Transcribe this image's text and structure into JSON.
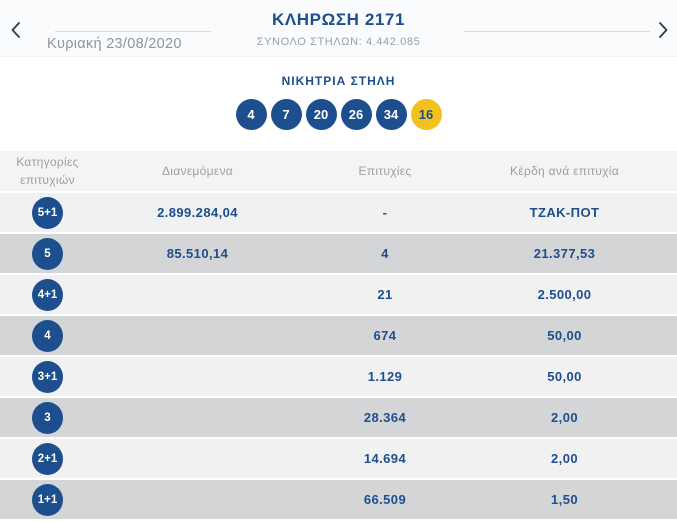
{
  "header": {
    "title": "ΚΛΗΡΩΣΗ 2171",
    "subtitle": "ΣΥΝΟΛΟ ΣΤΗΛΩΝ: 4.442.085",
    "date": "Κυριακή 23/08/2020"
  },
  "winning": {
    "label": "ΝΙΚΗΤΡΙΑ ΣΤΗΛΗ",
    "numbers": [
      "4",
      "7",
      "20",
      "26",
      "34"
    ],
    "joker": "16"
  },
  "table": {
    "columns": [
      "Κατηγορίες επιτυχιών",
      "Διανεμόμενα",
      "Επιτυχίες",
      "Κέρδη ανά επιτυχία"
    ],
    "rows": [
      {
        "category": "5+1",
        "distributed": "2.899.284,04",
        "wins": "-",
        "prize": "ΤΖΑΚ-ΠΟΤ"
      },
      {
        "category": "5",
        "distributed": "85.510,14",
        "wins": "4",
        "prize": "21.377,53"
      },
      {
        "category": "4+1",
        "distributed": "",
        "wins": "21",
        "prize": "2.500,00"
      },
      {
        "category": "4",
        "distributed": "",
        "wins": "674",
        "prize": "50,00"
      },
      {
        "category": "3+1",
        "distributed": "",
        "wins": "1.129",
        "prize": "50,00"
      },
      {
        "category": "3",
        "distributed": "",
        "wins": "28.364",
        "prize": "2,00"
      },
      {
        "category": "2+1",
        "distributed": "",
        "wins": "14.694",
        "prize": "2,00"
      },
      {
        "category": "1+1",
        "distributed": "",
        "wins": "66.509",
        "prize": "1,50"
      }
    ]
  },
  "colors": {
    "primary_blue": "#1d4e8d",
    "joker_yellow": "#f3c11d",
    "row_light": "#f1f1f2",
    "row_dark": "#d4d5d7",
    "table_header_bg": "#f4f4f5",
    "muted_gray": "#97a0ab"
  }
}
